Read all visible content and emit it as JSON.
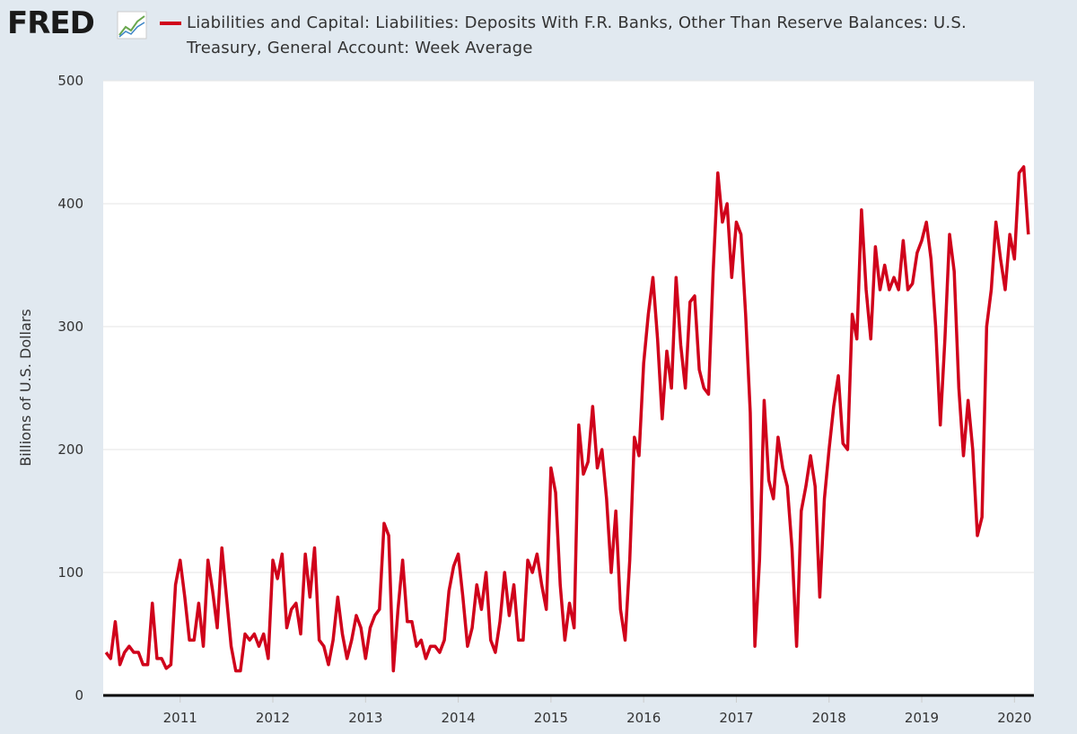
{
  "logo": "FRED",
  "chart_data": {
    "type": "line",
    "y_label": "Billions of U.S. Dollars",
    "xlim": [
      2010.17,
      2020.21
    ],
    "xticks": [
      2011,
      2012,
      2013,
      2014,
      2015,
      2016,
      2017,
      2018,
      2019,
      2020
    ],
    "ylim": [
      0,
      500
    ],
    "yticks": [
      0,
      100,
      200,
      300,
      400,
      500
    ],
    "grid": true,
    "x": [
      2010.2,
      2010.25,
      2010.3,
      2010.35,
      2010.4,
      2010.45,
      2010.5,
      2010.55,
      2010.6,
      2010.65,
      2010.7,
      2010.75,
      2010.8,
      2010.85,
      2010.9,
      2010.95,
      2011,
      2011.05,
      2011.1,
      2011.15,
      2011.2,
      2011.25,
      2011.3,
      2011.35,
      2011.4,
      2011.45,
      2011.5,
      2011.55,
      2011.6,
      2011.65,
      2011.7,
      2011.75,
      2011.8,
      2011.85,
      2011.9,
      2011.95,
      2012,
      2012.05,
      2012.1,
      2012.15,
      2012.2,
      2012.25,
      2012.3,
      2012.35,
      2012.4,
      2012.45,
      2012.5,
      2012.55,
      2012.6,
      2012.65,
      2012.7,
      2012.75,
      2012.8,
      2012.85,
      2012.9,
      2012.95,
      2013,
      2013.05,
      2013.1,
      2013.15,
      2013.2,
      2013.25,
      2013.3,
      2013.35,
      2013.4,
      2013.45,
      2013.5,
      2013.55,
      2013.6,
      2013.65,
      2013.7,
      2013.75,
      2013.8,
      2013.85,
      2013.9,
      2013.95,
      2014,
      2014.05,
      2014.1,
      2014.15,
      2014.2,
      2014.25,
      2014.3,
      2014.35,
      2014.4,
      2014.45,
      2014.5,
      2014.55,
      2014.6,
      2014.65,
      2014.7,
      2014.75,
      2014.8,
      2014.85,
      2014.9,
      2014.95,
      2015,
      2015.05,
      2015.1,
      2015.15,
      2015.2,
      2015.25,
      2015.3,
      2015.35,
      2015.4,
      2015.45,
      2015.5,
      2015.55,
      2015.6,
      2015.65,
      2015.7,
      2015.75,
      2015.8,
      2015.85,
      2015.9,
      2015.95,
      2016,
      2016.05,
      2016.1,
      2016.15,
      2016.2,
      2016.25,
      2016.3,
      2016.35,
      2016.4,
      2016.45,
      2016.5,
      2016.55,
      2016.6,
      2016.65,
      2016.7,
      2016.75,
      2016.8,
      2016.85,
      2016.9,
      2016.95,
      2017,
      2017.05,
      2017.1,
      2017.15,
      2017.2,
      2017.25,
      2017.3,
      2017.35,
      2017.4,
      2017.45,
      2017.5,
      2017.55,
      2017.6,
      2017.65,
      2017.7,
      2017.75,
      2017.8,
      2017.85,
      2017.9,
      2017.95,
      2018,
      2018.05,
      2018.1,
      2018.15,
      2018.2,
      2018.25,
      2018.3,
      2018.35,
      2018.4,
      2018.45,
      2018.5,
      2018.55,
      2018.6,
      2018.65,
      2018.7,
      2018.75,
      2018.8,
      2018.85,
      2018.9,
      2018.95,
      2019,
      2019.05,
      2019.1,
      2019.15,
      2019.2,
      2019.25,
      2019.3,
      2019.35,
      2019.4,
      2019.45,
      2019.5,
      2019.55,
      2019.6,
      2019.65,
      2019.7,
      2019.75,
      2019.8,
      2019.85,
      2019.9,
      2019.95,
      2020,
      2020.05,
      2020.1,
      2020.15
    ],
    "series": [
      {
        "name": "Liabilities and Capital: Liabilities: Deposits With F.R. Banks, Other Than Reserve Balances: U.S. Treasury, General Account: Week Average",
        "color": "#d0021b",
        "values": [
          35,
          30,
          60,
          25,
          35,
          40,
          35,
          35,
          25,
          25,
          75,
          30,
          30,
          22,
          25,
          90,
          110,
          80,
          45,
          45,
          75,
          40,
          110,
          85,
          55,
          120,
          80,
          40,
          20,
          20,
          50,
          45,
          50,
          40,
          50,
          30,
          110,
          95,
          115,
          55,
          70,
          75,
          50,
          115,
          80,
          120,
          45,
          40,
          25,
          45,
          80,
          50,
          30,
          45,
          65,
          55,
          30,
          55,
          65,
          70,
          140,
          130,
          20,
          70,
          110,
          60,
          60,
          40,
          45,
          30,
          40,
          40,
          35,
          45,
          85,
          105,
          115,
          80,
          40,
          55,
          90,
          70,
          100,
          45,
          35,
          60,
          100,
          65,
          90,
          45,
          45,
          110,
          100,
          115,
          90,
          70,
          185,
          165,
          90,
          45,
          75,
          55,
          220,
          180,
          190,
          235,
          185,
          200,
          160,
          100,
          150,
          70,
          45,
          110,
          210,
          195,
          270,
          310,
          340,
          290,
          225,
          280,
          250,
          340,
          285,
          250,
          320,
          325,
          265,
          250,
          245,
          345,
          425,
          385,
          400,
          340,
          385,
          375,
          310,
          230,
          40,
          110,
          240,
          175,
          160,
          210,
          185,
          170,
          120,
          40,
          150,
          170,
          195,
          170,
          80,
          160,
          200,
          235,
          260,
          205,
          200,
          310,
          290,
          395,
          330,
          290,
          365,
          330,
          350,
          330,
          340,
          330,
          370,
          330,
          335,
          360,
          370,
          385,
          355,
          300,
          220,
          290,
          375,
          345,
          250,
          195,
          240,
          200,
          130,
          145,
          300,
          330,
          385,
          355,
          330,
          375,
          355,
          425,
          430,
          375
        ]
      }
    ]
  }
}
